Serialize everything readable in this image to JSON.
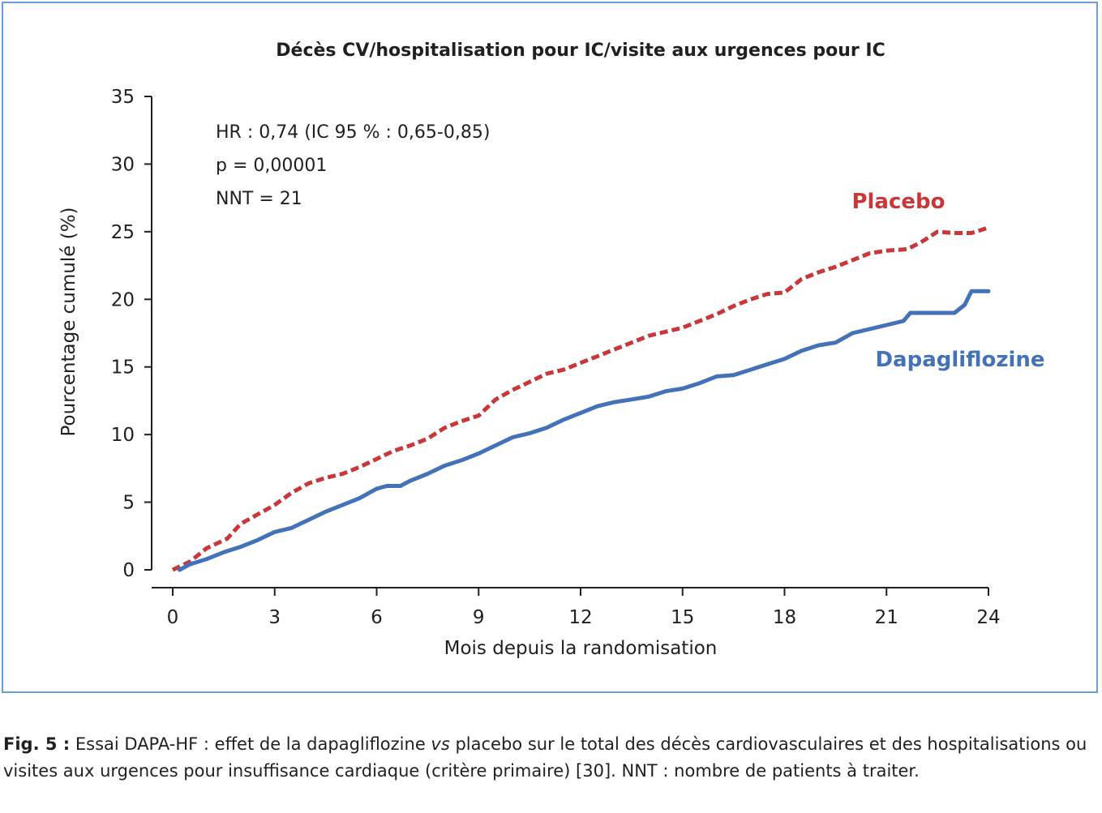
{
  "chart_data": {
    "type": "line",
    "title": "Décès CV/hospitalisation pour IC/visite aux urgences pour IC",
    "xlabel": "Mois depuis la randomisation",
    "ylabel": "Pourcentage cumulé (%)",
    "xlim": [
      0,
      24
    ],
    "ylim": [
      0,
      35
    ],
    "xticks": [
      "0",
      "3",
      "6",
      "9",
      "12",
      "15",
      "18",
      "21",
      "24"
    ],
    "yticks": [
      "0",
      "5",
      "10",
      "15",
      "20",
      "25",
      "30",
      "35"
    ],
    "annotations": [
      "HR : 0,74 (IC 95 % : 0,65-0,85)",
      "p = 0,00001",
      "NNT = 21"
    ],
    "grid": false,
    "colors": {
      "placebo": "#c8373a",
      "dapagliflozine": "#4472b8",
      "frame": "#6e9bd1"
    },
    "series": [
      {
        "name": "Placebo",
        "style": "dashed",
        "x": [
          0,
          0.5,
          1,
          1.6,
          2,
          2.5,
          3,
          3.5,
          4,
          4.5,
          5,
          5.5,
          6,
          6.5,
          7,
          7.5,
          8,
          8.5,
          9,
          9.5,
          10,
          10.5,
          11,
          11.5,
          12,
          12.5,
          13,
          13.5,
          14,
          14.5,
          15,
          15.5,
          16,
          16.5,
          17,
          17.5,
          18,
          18.5,
          19,
          19.5,
          20,
          20.5,
          21,
          21.6,
          22,
          22.5,
          23,
          23.5,
          24
        ],
        "y": [
          0,
          0.6,
          1.6,
          2.3,
          3.4,
          4.1,
          4.8,
          5.7,
          6.4,
          6.8,
          7.1,
          7.6,
          8.2,
          8.8,
          9.2,
          9.7,
          10.5,
          11.0,
          11.4,
          12.6,
          13.3,
          13.9,
          14.5,
          14.8,
          15.3,
          15.8,
          16.3,
          16.8,
          17.3,
          17.6,
          17.9,
          18.4,
          18.9,
          19.5,
          20.0,
          20.4,
          20.5,
          21.5,
          22.0,
          22.4,
          22.9,
          23.4,
          23.6,
          23.7,
          24.2,
          25.0,
          24.9,
          24.9,
          25.3
        ]
      },
      {
        "name": "Dapagliflozine",
        "style": "solid",
        "x": [
          0.2,
          0.5,
          1,
          1.5,
          2,
          2.5,
          3,
          3.5,
          4,
          4.5,
          5,
          5.5,
          6,
          6.3,
          6.7,
          7,
          7.5,
          8,
          8.5,
          9,
          9.5,
          10,
          10.5,
          11,
          11.5,
          12,
          12.5,
          13,
          13.5,
          14,
          14.5,
          15,
          15.5,
          16,
          16.5,
          17,
          17.5,
          18,
          18.5,
          19,
          19.5,
          20,
          20.5,
          21,
          21.5,
          21.7,
          22,
          22.5,
          23,
          23.3,
          23.5,
          24
        ],
        "y": [
          0,
          0.4,
          0.8,
          1.3,
          1.7,
          2.2,
          2.8,
          3.1,
          3.7,
          4.3,
          4.8,
          5.3,
          6.0,
          6.2,
          6.2,
          6.6,
          7.1,
          7.7,
          8.1,
          8.6,
          9.2,
          9.8,
          10.1,
          10.5,
          11.1,
          11.6,
          12.1,
          12.4,
          12.6,
          12.8,
          13.2,
          13.4,
          13.8,
          14.3,
          14.4,
          14.8,
          15.2,
          15.6,
          16.2,
          16.6,
          16.8,
          17.5,
          17.8,
          18.1,
          18.4,
          19.0,
          19.0,
          19.0,
          19.0,
          19.6,
          20.6,
          20.6
        ]
      }
    ]
  },
  "caption": {
    "fig_label": "Fig. 5 :",
    "text_before": " Essai DAPA-HF : effet de la dapagliflozine ",
    "vs": "vs",
    "text_after": " placebo sur le total des décès cardiovasculaires et des hospitalisations ou visites aux urgences pour insuffisance cardiaque (critère primaire) [30]. NNT : nombre de patients à traiter."
  }
}
